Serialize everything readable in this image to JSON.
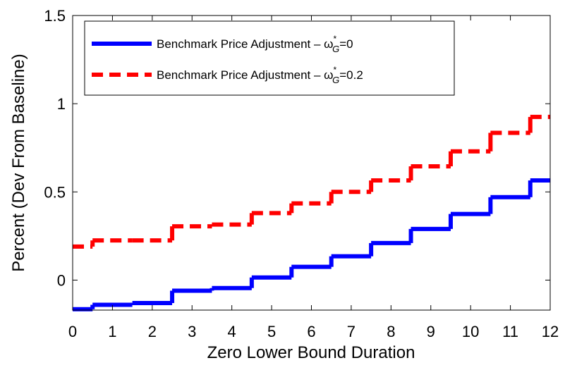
{
  "chart_data": {
    "type": "step",
    "xlabel": "Zero Lower Bound Duration",
    "ylabel": "Percent (Dev From Baseline)",
    "x": [
      0,
      1,
      2,
      3,
      4,
      5,
      6,
      7,
      8,
      9,
      10,
      11,
      12
    ],
    "series": [
      {
        "name": "Benchmark Price Adjustment – ω^*_G=0",
        "color": "#0000ff",
        "style": "solid",
        "values": [
          -0.165,
          -0.14,
          -0.13,
          -0.06,
          -0.045,
          0.015,
          0.075,
          0.135,
          0.21,
          0.29,
          0.375,
          0.47,
          0.565
        ]
      },
      {
        "name": "Benchmark Price Adjustment – ω^*_G=0.2",
        "color": "#ff0000",
        "style": "dashed",
        "values": [
          0.19,
          0.225,
          0.225,
          0.305,
          0.315,
          0.38,
          0.435,
          0.5,
          0.565,
          0.645,
          0.73,
          0.835,
          0.925
        ]
      }
    ],
    "xlim": [
      0,
      12
    ],
    "xticks": [
      0,
      1,
      2,
      3,
      4,
      5,
      6,
      7,
      8,
      9,
      10,
      11,
      12
    ],
    "ylim": [
      -0.17,
      1.5
    ],
    "yticks": [
      0,
      0.5,
      1,
      1.5
    ],
    "legend": "upper left",
    "grid": false
  }
}
